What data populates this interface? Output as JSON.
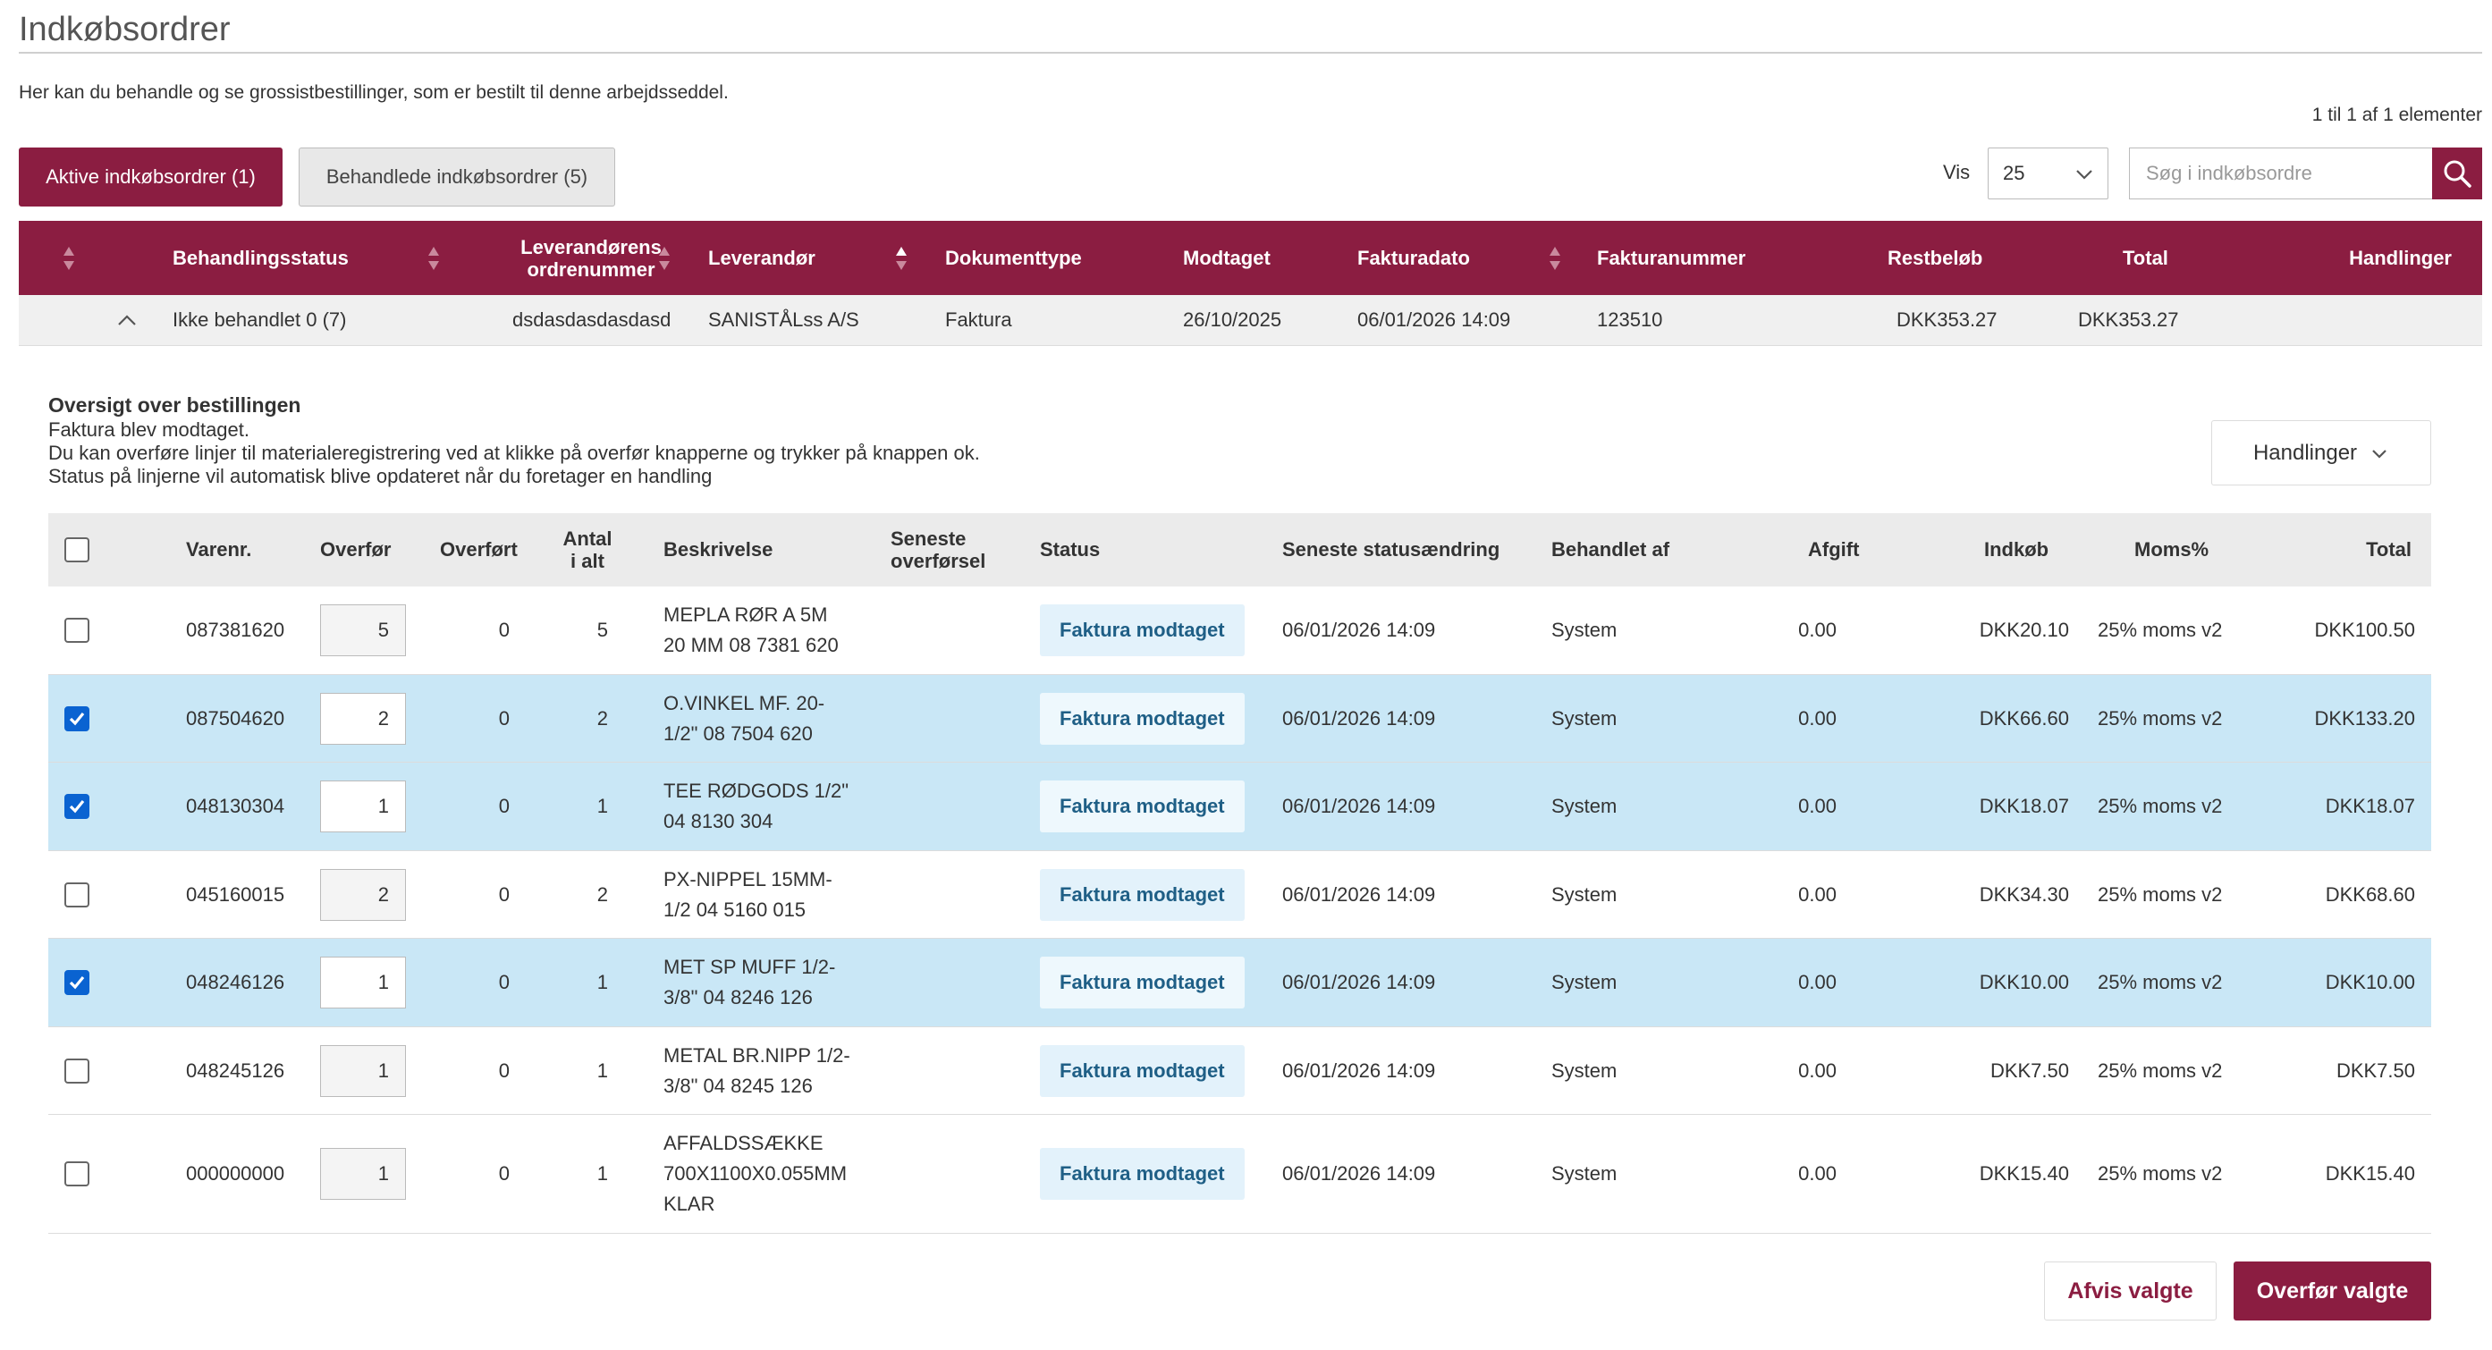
{
  "page": {
    "title": "Indkøbsordrer",
    "intro": "Her kan du behandle og se grossistbestillinger, som er bestilt til denne arbejdsseddel.",
    "pager": "1 til 1 af 1 elementer"
  },
  "tabs": {
    "active_label": "Aktive indkøbsordrer (1)",
    "processed_label": "Behandlede indkøbsordrer (5)"
  },
  "controls": {
    "vis_label": "Vis",
    "vis_value": "25",
    "search_placeholder": "Søg i indkøbsordre"
  },
  "main_table": {
    "headers": {
      "status": "Behandlingsstatus",
      "supplier_order_1": "Leverandørens",
      "supplier_order_2": "ordrenummer",
      "supplier": "Leverandør",
      "doctype": "Dokumenttype",
      "received": "Modtaget",
      "invoice_date": "Fakturadato",
      "invoice_no": "Fakturanummer",
      "remaining": "Restbeløb",
      "total": "Total",
      "actions": "Handlinger"
    },
    "row": {
      "status": "Ikke behandlet 0 (7)",
      "supplier_order": "dsdasdasdasdasd",
      "supplier": "SANISTÅLss A/S",
      "doctype": "Faktura",
      "received": "26/10/2025",
      "invoice_date": "06/01/2026 14:09",
      "invoice_no": "123510",
      "remaining": "DKK353.27",
      "total": "DKK353.27"
    }
  },
  "overview": {
    "title": "Oversigt over bestillingen",
    "line1": "Faktura blev modtaget.",
    "line2": "Du kan overføre linjer til materialeregistrering ved at klikke på overfør knapperne og trykker på knappen ok.",
    "line3": "Status på linjerne vil automatisk blive opdateret når du foretager en handling",
    "actions_label": "Handlinger"
  },
  "lines_table": {
    "headers": {
      "item_no": "Varenr.",
      "transfer": "Overfør",
      "transferred": "Overført",
      "count_1": "Antal",
      "count_2": "i alt",
      "description": "Beskrivelse",
      "last_transfer_1": "Seneste",
      "last_transfer_2": "overførsel",
      "status": "Status",
      "last_status_change": "Seneste statusændring",
      "handled_by": "Behandlet af",
      "fee": "Afgift",
      "purchase": "Indkøb",
      "vat": "Moms%",
      "total": "Total"
    },
    "rows": [
      {
        "checked": false,
        "item_no": "087381620",
        "transfer": "5",
        "transferred": "0",
        "count": "5",
        "desc1": "MEPLA RØR A 5M",
        "desc2": "20 MM 08 7381 620",
        "desc3": "",
        "status": "Faktura modtaget",
        "changed": "06/01/2026 14:09",
        "by": "System",
        "fee": "0.00",
        "purchase": "DKK20.10",
        "vat": "25% moms v2",
        "total": "DKK100.50"
      },
      {
        "checked": true,
        "item_no": "087504620",
        "transfer": "2",
        "transferred": "0",
        "count": "2",
        "desc1": "O.VINKEL MF. 20-",
        "desc2": "1/2\" 08 7504 620",
        "desc3": "",
        "status": "Faktura modtaget",
        "changed": "06/01/2026 14:09",
        "by": "System",
        "fee": "0.00",
        "purchase": "DKK66.60",
        "vat": "25% moms v2",
        "total": "DKK133.20"
      },
      {
        "checked": true,
        "item_no": "048130304",
        "transfer": "1",
        "transferred": "0",
        "count": "1",
        "desc1": "TEE RØDGODS 1/2\"",
        "desc2": "04 8130 304",
        "desc3": "",
        "status": "Faktura modtaget",
        "changed": "06/01/2026 14:09",
        "by": "System",
        "fee": "0.00",
        "purchase": "DKK18.07",
        "vat": "25% moms v2",
        "total": "DKK18.07"
      },
      {
        "checked": false,
        "item_no": "045160015",
        "transfer": "2",
        "transferred": "0",
        "count": "2",
        "desc1": "PX-NIPPEL 15MM-",
        "desc2": "1/2 04 5160 015",
        "desc3": "",
        "status": "Faktura modtaget",
        "changed": "06/01/2026 14:09",
        "by": "System",
        "fee": "0.00",
        "purchase": "DKK34.30",
        "vat": "25% moms v2",
        "total": "DKK68.60"
      },
      {
        "checked": true,
        "item_no": "048246126",
        "transfer": "1",
        "transferred": "0",
        "count": "1",
        "desc1": "MET SP MUFF 1/2-",
        "desc2": "3/8\" 04 8246 126",
        "desc3": "",
        "status": "Faktura modtaget",
        "changed": "06/01/2026 14:09",
        "by": "System",
        "fee": "0.00",
        "purchase": "DKK10.00",
        "vat": "25% moms v2",
        "total": "DKK10.00"
      },
      {
        "checked": false,
        "item_no": "048245126",
        "transfer": "1",
        "transferred": "0",
        "count": "1",
        "desc1": "METAL BR.NIPP 1/2-",
        "desc2": "3/8\" 04 8245 126",
        "desc3": "",
        "status": "Faktura modtaget",
        "changed": "06/01/2026 14:09",
        "by": "System",
        "fee": "0.00",
        "purchase": "DKK7.50",
        "vat": "25% moms v2",
        "total": "DKK7.50"
      },
      {
        "checked": false,
        "item_no": "000000000",
        "transfer": "1",
        "transferred": "0",
        "count": "1",
        "desc1": "AFFALDSSÆKKE",
        "desc2": "700X1100X0.055MM",
        "desc3": "KLAR",
        "status": "Faktura modtaget",
        "changed": "06/01/2026 14:09",
        "by": "System",
        "fee": "0.00",
        "purchase": "DKK15.40",
        "vat": "25% moms v2",
        "total": "DKK15.40"
      }
    ]
  },
  "footer": {
    "reject_label": "Afvis valgte",
    "transfer_label": "Overfør valgte"
  },
  "colors": {
    "brand": "#8b1d41",
    "selected_row": "#c9e7f6",
    "checkbox": "#0a63d1"
  }
}
